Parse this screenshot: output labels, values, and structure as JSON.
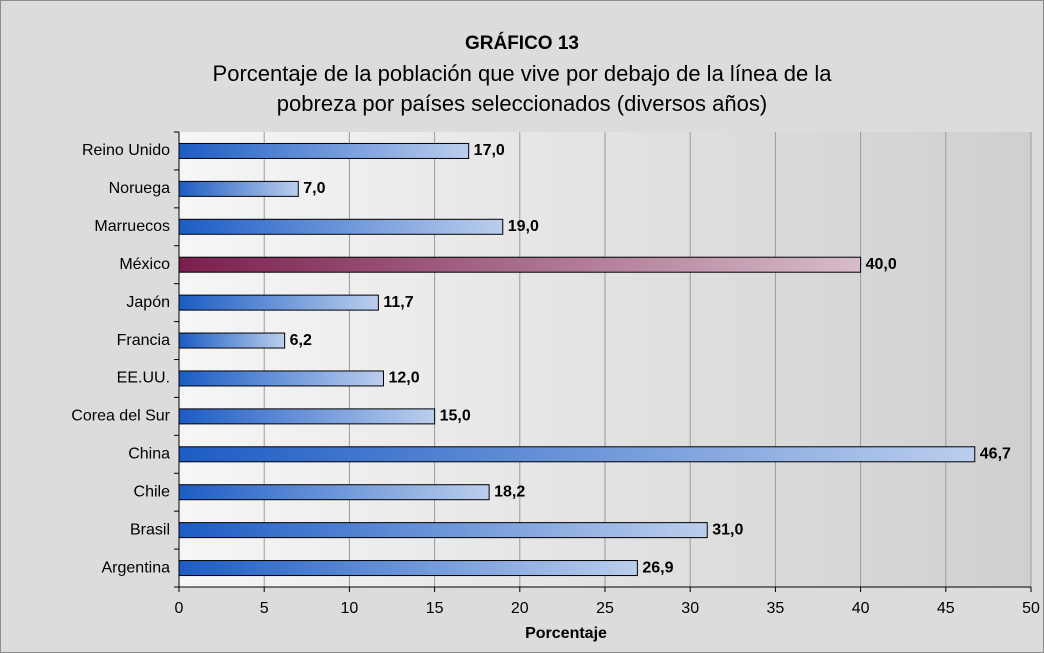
{
  "chart_data": {
    "type": "barh",
    "title": "GRÁFICO 13",
    "subtitle": [
      "Porcentaje de la población que vive por debajo de la línea de la",
      "pobreza por países seleccionados (diversos años)"
    ],
    "xlabel": "Porcentaje",
    "categories": [
      "Reino Unido",
      "Noruega",
      "Marruecos",
      "México",
      "Japón",
      "Francia",
      "EE.UU.",
      "Corea del Sur",
      "China",
      "Chile",
      "Brasil",
      "Argentina"
    ],
    "values": [
      17,
      7,
      19,
      40,
      11.7,
      6.2,
      12,
      15,
      46.7,
      18.2,
      31,
      26.9
    ],
    "value_labels": [
      "17,0",
      "7,0",
      "19,0",
      "40,0",
      "11,7",
      "6,2",
      "12,0",
      "15,0",
      "46,7",
      "18,2",
      "31,0",
      "26,9"
    ],
    "colors": [
      "#1c5cc4",
      "#1c5cc4",
      "#1c5cc4",
      "#7b1e4e",
      "#1c5cc4",
      "#1c5cc4",
      "#1c5cc4",
      "#1c5cc4",
      "#1c5cc4",
      "#1c5cc4",
      "#1c5cc4",
      "#1c5cc4"
    ],
    "xlim": [
      0,
      50
    ],
    "xticks": [
      0,
      5,
      10,
      15,
      20,
      25,
      30,
      35,
      40,
      45,
      50
    ],
    "grid": true
  }
}
